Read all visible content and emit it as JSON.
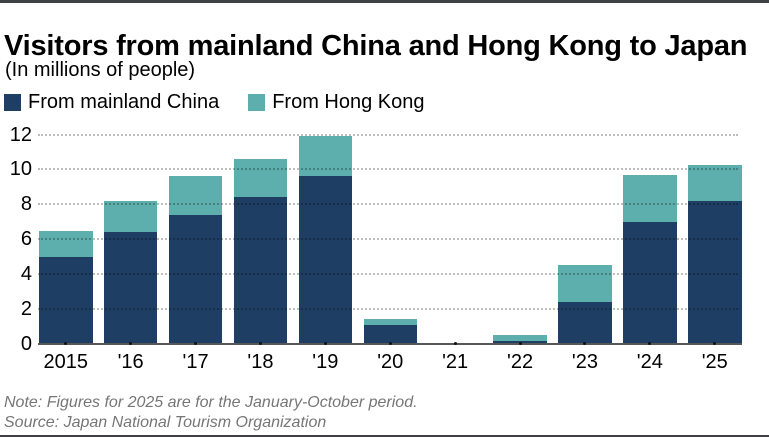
{
  "page": {
    "title": "Visitors from mainland China and Hong Kong to Japan",
    "subtitle": "(In millions of people)",
    "note": "Note: Figures for 2025 are for the January-October period.",
    "source": "Source: Japan National Tourism Organization"
  },
  "colors": {
    "mainland_china": "#1e3f63",
    "hong_kong": "#5cafac",
    "gridline": "rgba(0,0,0,0.26)",
    "axis_line": "#55575b",
    "note_text": "#767676",
    "rule": "#3e4043"
  },
  "legend": [
    {
      "label": "From mainland China",
      "color": "#1e3f63"
    },
    {
      "label": "From Hong Kong",
      "color": "#5cafac"
    }
  ],
  "chart_data": {
    "type": "bar",
    "stacked": true,
    "title": "Visitors from mainland China and Hong Kong to Japan",
    "subtitle": "(In millions of people)",
    "xlabel": "",
    "ylabel": "",
    "units": "millions of people",
    "categories": [
      "2015",
      "'16",
      "'17",
      "'18",
      "'19",
      "'20",
      "'21",
      "'22",
      "'23",
      "'24",
      "'25"
    ],
    "series": [
      {
        "name": "From mainland China",
        "color": "#1e3f63",
        "values": [
          5.0,
          6.4,
          7.4,
          8.4,
          9.6,
          1.1,
          0.04,
          0.2,
          2.4,
          7.0,
          8.2
        ]
      },
      {
        "name": "From Hong Kong",
        "color": "#5cafac",
        "values": [
          1.5,
          1.8,
          2.2,
          2.2,
          2.3,
          0.35,
          0.01,
          0.3,
          2.15,
          2.7,
          2.05
        ]
      }
    ],
    "stack_totals": [
      6.5,
      8.2,
      9.6,
      10.6,
      11.9,
      1.45,
      0.05,
      0.5,
      4.55,
      9.7,
      10.25
    ],
    "ylim": [
      0,
      12
    ],
    "yticks": [
      0,
      2,
      4,
      6,
      8,
      10,
      12
    ],
    "grid": "horizontal-dotted",
    "legend_position": "top-left"
  }
}
